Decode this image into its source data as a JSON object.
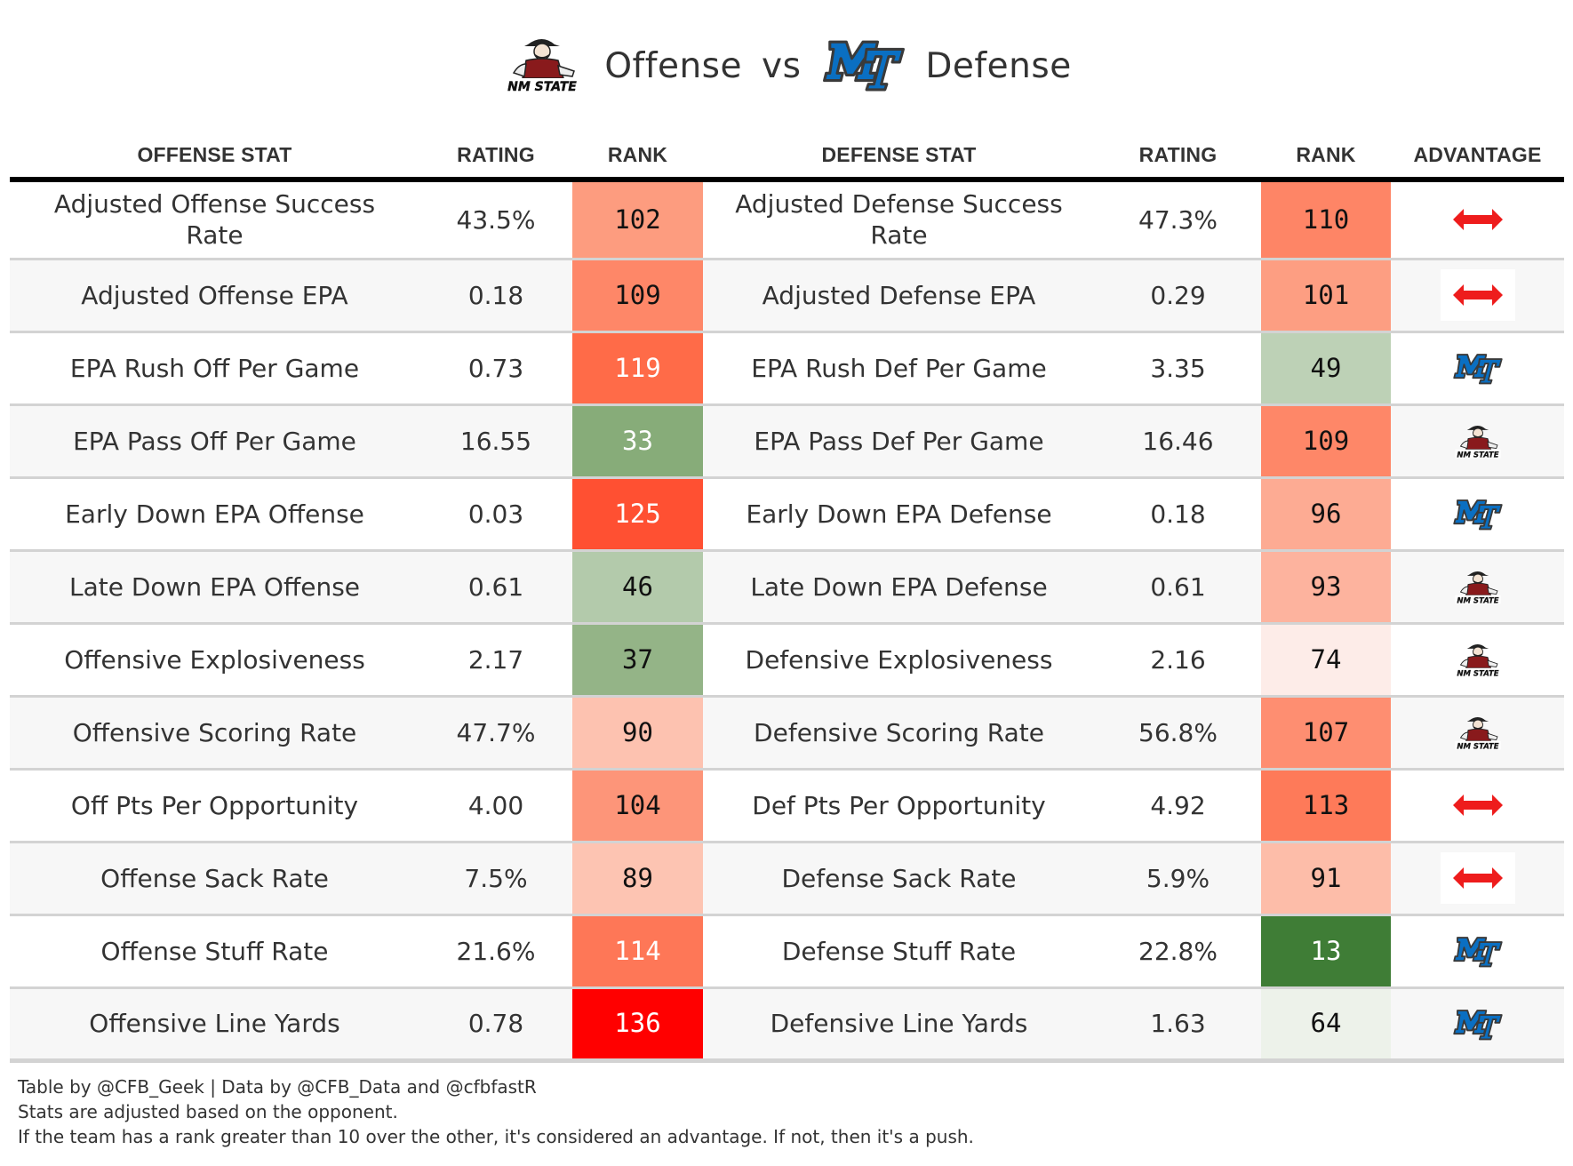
{
  "title": {
    "offense_team": "NM STATE",
    "offense_word": "Offense",
    "vs_word": "vs",
    "defense_team": "MT",
    "defense_word": "Defense"
  },
  "columns": [
    "OFFENSE STAT",
    "RATING",
    "RANK",
    "DEFENSE STAT",
    "RATING",
    "RANK",
    "ADVANTAGE"
  ],
  "colors": {
    "header_rule": "#000000",
    "row_divider": "#d3d3d3",
    "row_alt": "#f7f7f7",
    "push_arrow": "#ee1c1c",
    "mt_blue": "#0a6fc2",
    "nmsu_crimson": "#891a1c"
  },
  "rows": [
    {
      "off_stat": "Adjusted Offense Success Rate",
      "off_rating": "43.5%",
      "off_rank": "102",
      "off_rank_color": "#fd9c7f",
      "off_rank_light": false,
      "def_stat": "Adjusted Defense Success Rate",
      "def_rating": "47.3%",
      "def_rank": "110",
      "def_rank_color": "#fe8566",
      "def_rank_light": false,
      "advantage": "push",
      "advantage_icon": "double-arrow-icon"
    },
    {
      "off_stat": "Adjusted Offense EPA",
      "off_rating": "0.18",
      "off_rank": "109",
      "off_rank_color": "#fe8768",
      "off_rank_light": false,
      "def_stat": "Adjusted Defense EPA",
      "def_rating": "0.29",
      "def_rank": "101",
      "def_rank_color": "#fd9e82",
      "def_rank_light": false,
      "advantage": "push",
      "advantage_icon": "double-arrow-icon"
    },
    {
      "off_stat": "EPA Rush Off Per Game",
      "off_rating": "0.73",
      "off_rank": "119",
      "off_rank_color": "#ff6b48",
      "off_rank_light": true,
      "def_stat": "EPA Rush Def Per Game",
      "def_rating": "3.35",
      "def_rank": "49",
      "def_rank_color": "#bdd1b6",
      "def_rank_light": false,
      "advantage": "MT",
      "advantage_icon": "mt-logo-icon"
    },
    {
      "off_stat": "EPA Pass Off Per Game",
      "off_rating": "16.55",
      "off_rank": "33",
      "off_rank_color": "#87ac79",
      "off_rank_light": true,
      "def_stat": "EPA Pass Def Per Game",
      "def_rating": "16.46",
      "def_rank": "109",
      "def_rank_color": "#fe8768",
      "def_rank_light": false,
      "advantage": "NM State",
      "advantage_icon": "nmsu-logo-icon"
    },
    {
      "off_stat": "Early Down EPA Offense",
      "off_rating": "0.03",
      "off_rank": "125",
      "off_rank_color": "#ff5032",
      "off_rank_light": true,
      "def_stat": "Early Down EPA Defense",
      "def_rating": "0.18",
      "def_rank": "96",
      "def_rank_color": "#fdab93",
      "def_rank_light": false,
      "advantage": "MT",
      "advantage_icon": "mt-logo-icon"
    },
    {
      "off_stat": "Late Down EPA Offense",
      "off_rating": "0.61",
      "off_rank": "46",
      "off_rank_color": "#b3caab",
      "off_rank_light": false,
      "def_stat": "Late Down EPA Defense",
      "def_rating": "0.61",
      "def_rank": "93",
      "def_rank_color": "#fdb39e",
      "def_rank_light": false,
      "advantage": "NM State",
      "advantage_icon": "nmsu-logo-icon"
    },
    {
      "off_stat": "Offensive Explosiveness",
      "off_rating": "2.17",
      "off_rank": "37",
      "off_rank_color": "#94b487",
      "off_rank_light": false,
      "def_stat": "Defensive Explosiveness",
      "def_rating": "2.16",
      "def_rank": "74",
      "def_rank_color": "#fdece8",
      "def_rank_light": false,
      "advantage": "NM State",
      "advantage_icon": "nmsu-logo-icon"
    },
    {
      "off_stat": "Offensive Scoring Rate",
      "off_rating": "47.7%",
      "off_rank": "90",
      "off_rank_color": "#fdc2b0",
      "off_rank_light": false,
      "def_stat": "Defensive Scoring Rate",
      "def_rating": "56.8%",
      "def_rank": "107",
      "def_rank_color": "#fe8e71",
      "def_rank_light": false,
      "advantage": "NM State",
      "advantage_icon": "nmsu-logo-icon"
    },
    {
      "off_stat": "Off Pts Per Opportunity",
      "off_rating": "4.00",
      "off_rank": "104",
      "off_rank_color": "#fd9579",
      "off_rank_light": false,
      "def_stat": "Def Pts Per Opportunity",
      "def_rating": "4.92",
      "def_rank": "113",
      "def_rank_color": "#fe7a59",
      "def_rank_light": false,
      "advantage": "push",
      "advantage_icon": "double-arrow-icon"
    },
    {
      "off_stat": "Offense Sack Rate",
      "off_rating": "7.5%",
      "off_rank": "89",
      "off_rank_color": "#fdc4b2",
      "off_rank_light": false,
      "def_stat": "Defense Sack Rate",
      "def_rating": "5.9%",
      "def_rank": "91",
      "def_rank_color": "#fdbda9",
      "def_rank_light": false,
      "advantage": "push",
      "advantage_icon": "double-arrow-icon"
    },
    {
      "off_stat": "Offense Stuff Rate",
      "off_rating": "21.6%",
      "off_rank": "114",
      "off_rank_color": "#fe7757",
      "off_rank_light": true,
      "def_stat": "Defense Stuff Rate",
      "def_rating": "22.8%",
      "def_rank": "13",
      "def_rank_color": "#3f7d36",
      "def_rank_light": true,
      "advantage": "MT",
      "advantage_icon": "mt-logo-icon"
    },
    {
      "off_stat": "Offensive Line Yards",
      "off_rating": "0.78",
      "off_rank": "136",
      "off_rank_color": "#ff0000",
      "off_rank_light": true,
      "def_stat": "Defensive Line Yards",
      "def_rating": "1.63",
      "def_rank": "64",
      "def_rank_color": "#edf2ea",
      "def_rank_light": false,
      "advantage": "MT",
      "advantage_icon": "mt-logo-icon"
    }
  ],
  "footer": {
    "line1": "Table by @CFB_Geek | Data by @CFB_Data and @cfbfastR",
    "line2": "Stats are adjusted based on the opponent.",
    "line3": "If the team has a rank greater than 10 over the other, it's considered an advantage. If not, then it's a push."
  }
}
